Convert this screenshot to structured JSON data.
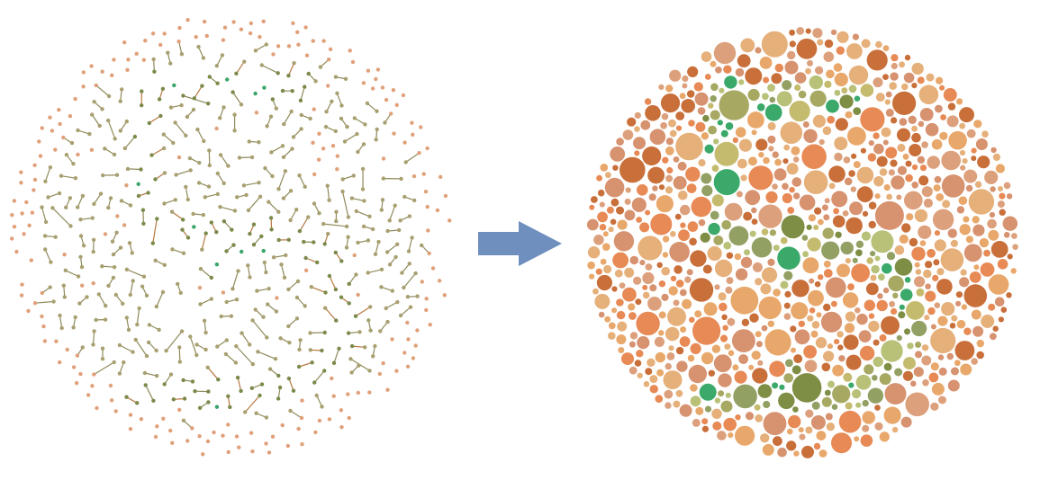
{
  "figure": {
    "description_visible_text": "",
    "left_panel": {
      "kind": "point-graph",
      "node_colors": {
        "background_orange": "#e0a07a",
        "background_olive": "#a8a070",
        "figure_green": "#3aa56a",
        "figure_olive_dark": "#7a8a4a",
        "figure_brown": "#c07a40"
      },
      "edge_colors": {
        "olive": "#8f8a5a",
        "brown": "#b87840"
      }
    },
    "arrow": {
      "direction": "right",
      "color": "#6f8fbf"
    },
    "right_panel": {
      "kind": "ishihara-plate",
      "palette_background": [
        "#e88a55",
        "#e9a86b",
        "#d79270",
        "#c96f3a",
        "#e6b07a",
        "#dda07c"
      ],
      "palette_figure": [
        "#3aa96a",
        "#93a063",
        "#c4bb6e",
        "#7f8e45",
        "#a7a862",
        "#b9c178"
      ]
    }
  }
}
